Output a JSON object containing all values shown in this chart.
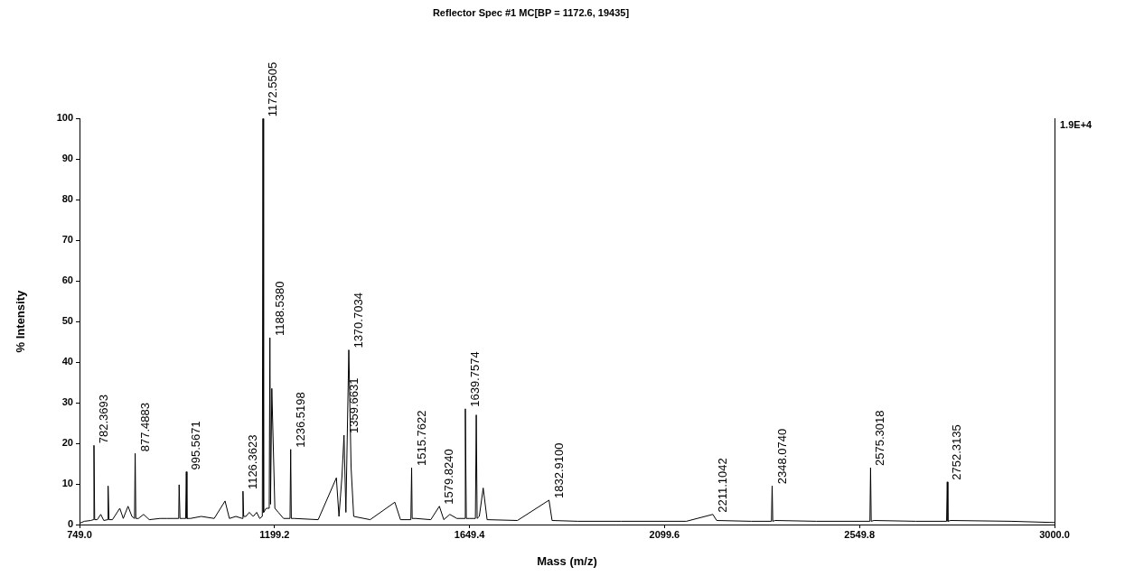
{
  "chart_data": {
    "type": "line",
    "title": "Reflector Spec #1 MC[BP = 1172.6, 19435]",
    "xlabel": "Mass (m/z)",
    "ylabel": "% Intensity",
    "xlim": [
      749,
      3000
    ],
    "xticks": [
      {
        "value": 749,
        "label": "749.0"
      },
      {
        "value": 1199.2,
        "label": "1199.2"
      },
      {
        "value": 1649.4,
        "label": "1649.4"
      },
      {
        "value": 2099.6,
        "label": "2099.6"
      },
      {
        "value": 2549.8,
        "label": "2549.8"
      },
      {
        "value": 3000,
        "label": "3000.0"
      }
    ],
    "ylim": [
      0,
      100
    ],
    "yticks": [
      0,
      10,
      20,
      30,
      40,
      50,
      60,
      70,
      80,
      90,
      100
    ],
    "grid": false,
    "legend": false,
    "series": [
      {
        "color": "#000000",
        "x": [
          749,
          760,
          775,
          781,
          782.37,
          784,
          790,
          798,
          805,
          814,
          815,
          817,
          825,
          842,
          850,
          861,
          870,
          876,
          877.49,
          879,
          885,
          897,
          910,
          935,
          950,
          978,
          979,
          981,
          988,
          994,
          995.57,
          997,
          1005,
          1030,
          1060,
          1085,
          1095,
          1110,
          1125,
          1126.36,
          1128,
          1133,
          1141,
          1150,
          1158,
          1165,
          1171,
          1172.55,
          1174,
          1180,
          1187,
          1188.54,
          1190,
          1193,
          1200,
          1208,
          1220,
          1235,
          1236.52,
          1238,
          1245,
          1300,
          1342,
          1348,
          1355,
          1359.66,
          1364,
          1370.7,
          1376,
          1382,
          1420,
          1477,
          1490,
          1514,
          1515.76,
          1517,
          1525,
          1560,
          1579.82,
          1590,
          1604,
          1620,
          1638,
          1639.76,
          1642,
          1650,
          1663,
          1665,
          1667,
          1672,
          1681,
          1690,
          1760,
          1832.91,
          1840,
          1900,
          2000,
          2150,
          2211.1,
          2220,
          2300,
          2346.5,
          2348.07,
          2349.5,
          2355,
          2450,
          2573.8,
          2575.3,
          2576.8,
          2583,
          2680,
          2750.8,
          2752.31,
          2753.8,
          2760,
          2900,
          2998,
          3000
        ],
        "values": [
          0.3,
          0.8,
          1,
          1.2,
          19.5,
          1.2,
          1.2,
          2.5,
          1,
          1.2,
          9.5,
          1.2,
          1.2,
          4,
          1.5,
          4.5,
          2,
          1.5,
          17.5,
          1.5,
          1.5,
          2.5,
          1.2,
          1.5,
          1.5,
          1.5,
          9.8,
          1.5,
          1.5,
          1.5,
          13,
          1.5,
          1.5,
          2,
          1.5,
          5.8,
          1.5,
          2,
          1.5,
          8.2,
          2,
          2,
          3,
          2,
          3,
          1.5,
          2,
          100,
          3,
          4,
          4,
          46,
          5,
          33.5,
          4,
          3,
          1.5,
          1.5,
          18.5,
          1.5,
          1.5,
          1.2,
          11.5,
          2,
          12,
          22,
          3,
          43,
          14,
          2,
          1.2,
          5.5,
          1.2,
          1.2,
          14,
          1.5,
          1.5,
          1.2,
          4.5,
          1.2,
          2.5,
          1.5,
          1.5,
          28.5,
          1.5,
          1.5,
          1.5,
          27,
          1.5,
          2,
          9,
          1.2,
          1,
          6,
          1,
          0.8,
          0.8,
          0.8,
          2.5,
          1,
          0.8,
          0.8,
          9.5,
          0.8,
          1,
          0.8,
          0.8,
          14,
          0.8,
          1,
          0.8,
          0.8,
          10.5,
          0.8,
          1,
          0.8,
          0.5,
          0.5
        ]
      }
    ],
    "annotations": [
      {
        "text": "782.3693",
        "x": 782.3693,
        "y": 19.5
      },
      {
        "text": "877.4883",
        "x": 877.4883,
        "y": 17.5
      },
      {
        "text": "995.5671",
        "x": 995.5671,
        "y": 13
      },
      {
        "text": "1126.3623",
        "x": 1126.3623,
        "y": 8.2
      },
      {
        "text": "1172.5505",
        "x": 1172.5505,
        "y": 100
      },
      {
        "text": "1188.5380",
        "x": 1188.538,
        "y": 46
      },
      {
        "text": "1236.5198",
        "x": 1236.5198,
        "y": 18.5
      },
      {
        "text": "1359.6631",
        "x": 1359.6631,
        "y": 22
      },
      {
        "text": "1370.7034",
        "x": 1370.7034,
        "y": 43
      },
      {
        "text": "1515.7622",
        "x": 1515.7622,
        "y": 14
      },
      {
        "text": "1579.8240",
        "x": 1579.824,
        "y": 4.5
      },
      {
        "text": "1639.7574",
        "x": 1639.7574,
        "y": 28.5
      },
      {
        "text": "1832.9100",
        "x": 1832.91,
        "y": 6
      },
      {
        "text": "2211.1042",
        "x": 2211.1042,
        "y": 2.5
      },
      {
        "text": "2348.0740",
        "x": 2348.074,
        "y": 9.5
      },
      {
        "text": "2575.3018",
        "x": 2575.3018,
        "y": 14
      },
      {
        "text": "2752.3135",
        "x": 2752.3135,
        "y": 10.5
      },
      "1.9E+4"
    ]
  }
}
